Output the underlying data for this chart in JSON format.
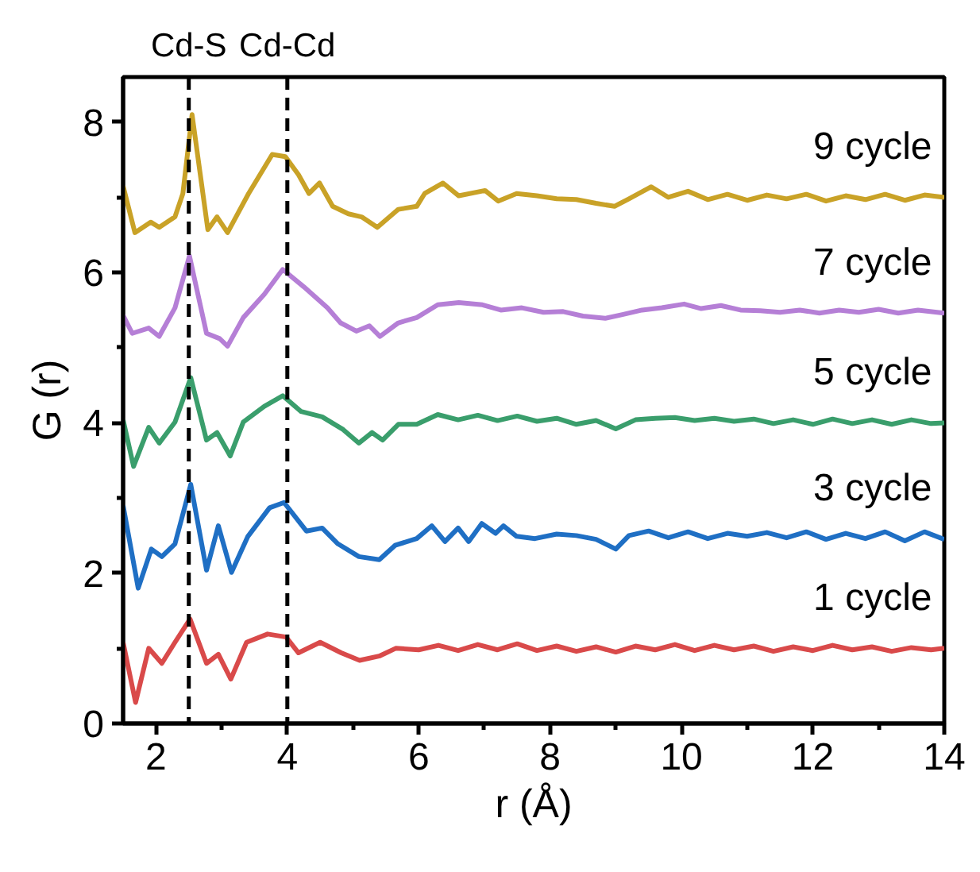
{
  "chart_data": {
    "type": "line",
    "xlabel": "r (Å)",
    "ylabel": "G (r)",
    "xlim": [
      1.5,
      14
    ],
    "xticks": [
      2,
      4,
      6,
      8,
      10,
      12,
      14
    ],
    "ylim": [
      0,
      8.6
    ],
    "yticks": [
      0,
      2,
      4,
      6,
      8
    ],
    "grid": false,
    "marker": "none",
    "line_style": "solid",
    "ref_lines": [
      {
        "axis": "x",
        "value": 2.5,
        "label": "Cd-S",
        "line_style": "dashed"
      },
      {
        "axis": "x",
        "value": 4.0,
        "label": "Cd-Cd",
        "line_style": "dashed"
      }
    ],
    "series": [
      {
        "name": "1 cycle",
        "color": "#d94a4a",
        "x": [
          1.5,
          1.69,
          1.89,
          2.09,
          2.29,
          2.52,
          2.77,
          2.95,
          3.14,
          3.38,
          3.7,
          3.98,
          4.17,
          4.5,
          4.82,
          5.1,
          5.41,
          5.65,
          6.0,
          6.3,
          6.6,
          6.9,
          7.2,
          7.5,
          7.8,
          8.1,
          8.4,
          8.7,
          9.0,
          9.3,
          9.6,
          9.9,
          10.2,
          10.5,
          10.8,
          11.1,
          11.4,
          11.7,
          12.0,
          12.3,
          12.6,
          12.9,
          13.2,
          13.5,
          13.8,
          14.0
        ],
        "values": [
          1.08,
          0.28,
          1.0,
          0.8,
          1.08,
          1.39,
          0.8,
          0.92,
          0.59,
          1.08,
          1.19,
          1.15,
          0.94,
          1.08,
          0.94,
          0.84,
          0.9,
          1.0,
          0.98,
          1.04,
          0.97,
          1.05,
          0.98,
          1.06,
          0.97,
          1.03,
          0.96,
          1.02,
          0.95,
          1.03,
          0.98,
          1.05,
          0.97,
          1.04,
          0.98,
          1.03,
          0.96,
          1.02,
          0.97,
          1.04,
          0.98,
          1.02,
          0.96,
          1.01,
          0.98,
          1.0
        ]
      },
      {
        "name": "3 cycle",
        "color": "#1f6fc4",
        "x": [
          1.5,
          1.73,
          1.93,
          2.09,
          2.29,
          2.53,
          2.77,
          2.95,
          3.15,
          3.4,
          3.73,
          3.95,
          4.29,
          4.53,
          4.77,
          5.09,
          5.4,
          5.64,
          5.97,
          6.2,
          6.4,
          6.6,
          6.76,
          6.96,
          7.17,
          7.29,
          7.49,
          7.77,
          8.1,
          8.4,
          8.7,
          9.0,
          9.2,
          9.5,
          9.8,
          10.1,
          10.4,
          10.7,
          11.0,
          11.3,
          11.6,
          11.9,
          12.2,
          12.5,
          12.8,
          13.1,
          13.4,
          13.7,
          14.0
        ],
        "values": [
          2.9,
          1.8,
          2.32,
          2.22,
          2.39,
          3.18,
          2.04,
          2.63,
          2.01,
          2.49,
          2.87,
          2.94,
          2.56,
          2.6,
          2.39,
          2.22,
          2.18,
          2.37,
          2.46,
          2.63,
          2.42,
          2.6,
          2.42,
          2.66,
          2.53,
          2.63,
          2.49,
          2.46,
          2.52,
          2.5,
          2.45,
          2.32,
          2.5,
          2.56,
          2.47,
          2.55,
          2.46,
          2.53,
          2.49,
          2.54,
          2.47,
          2.55,
          2.45,
          2.53,
          2.46,
          2.55,
          2.43,
          2.55,
          2.45
        ]
      },
      {
        "name": "5 cycle",
        "color": "#3a9e6c",
        "x": [
          1.5,
          1.66,
          1.89,
          2.05,
          2.29,
          2.53,
          2.77,
          2.93,
          3.13,
          3.33,
          3.65,
          3.93,
          4.21,
          4.53,
          4.85,
          5.09,
          5.29,
          5.45,
          5.69,
          5.97,
          6.29,
          6.6,
          6.9,
          7.2,
          7.5,
          7.8,
          8.1,
          8.4,
          8.7,
          9.0,
          9.3,
          9.6,
          9.9,
          10.2,
          10.5,
          10.8,
          11.1,
          11.4,
          11.7,
          12.0,
          12.3,
          12.6,
          12.9,
          13.2,
          13.5,
          13.8,
          14.0
        ],
        "values": [
          4.04,
          3.42,
          3.94,
          3.73,
          4.01,
          4.6,
          3.77,
          3.87,
          3.56,
          4.01,
          4.22,
          4.36,
          4.15,
          4.08,
          3.91,
          3.73,
          3.87,
          3.77,
          3.98,
          3.98,
          4.11,
          4.04,
          4.1,
          4.03,
          4.09,
          4.02,
          4.06,
          3.98,
          4.03,
          3.92,
          4.04,
          4.06,
          4.07,
          4.03,
          4.06,
          4.02,
          4.05,
          3.99,
          4.04,
          3.98,
          4.05,
          3.99,
          4.04,
          3.98,
          4.04,
          3.99,
          4.0
        ]
      },
      {
        "name": "7 cycle",
        "color": "#b57fd6",
        "x": [
          1.5,
          1.64,
          1.89,
          2.05,
          2.29,
          2.51,
          2.77,
          2.97,
          3.09,
          3.33,
          3.65,
          3.93,
          4.25,
          4.61,
          4.81,
          5.05,
          5.25,
          5.41,
          5.69,
          5.97,
          6.29,
          6.61,
          6.97,
          7.25,
          7.57,
          7.9,
          8.2,
          8.5,
          8.84,
          9.1,
          9.4,
          9.7,
          10.04,
          10.3,
          10.6,
          10.9,
          11.2,
          11.5,
          11.8,
          12.1,
          12.4,
          12.7,
          13.0,
          13.3,
          13.6,
          14.0
        ],
        "values": [
          5.43,
          5.19,
          5.26,
          5.15,
          5.53,
          6.22,
          5.19,
          5.12,
          5.02,
          5.4,
          5.71,
          6.04,
          5.81,
          5.53,
          5.33,
          5.22,
          5.29,
          5.15,
          5.33,
          5.4,
          5.57,
          5.6,
          5.57,
          5.5,
          5.53,
          5.47,
          5.48,
          5.42,
          5.39,
          5.44,
          5.5,
          5.53,
          5.58,
          5.52,
          5.56,
          5.5,
          5.49,
          5.47,
          5.5,
          5.46,
          5.5,
          5.47,
          5.51,
          5.46,
          5.5,
          5.46
        ]
      },
      {
        "name": "9 cycle",
        "color": "#c9a227",
        "x": [
          1.5,
          1.68,
          1.92,
          2.05,
          2.29,
          2.41,
          2.55,
          2.79,
          2.93,
          3.09,
          3.41,
          3.77,
          3.97,
          4.17,
          4.33,
          4.49,
          4.69,
          4.93,
          5.13,
          5.37,
          5.69,
          5.97,
          6.09,
          6.37,
          6.61,
          7.01,
          7.21,
          7.49,
          7.8,
          8.1,
          8.4,
          8.7,
          8.98,
          9.2,
          9.54,
          9.8,
          10.1,
          10.4,
          10.7,
          11.0,
          11.3,
          11.6,
          11.9,
          12.2,
          12.5,
          12.8,
          13.1,
          13.4,
          13.7,
          14.0
        ],
        "values": [
          7.15,
          6.53,
          6.67,
          6.6,
          6.74,
          7.05,
          8.1,
          6.57,
          6.74,
          6.53,
          7.05,
          7.57,
          7.54,
          7.3,
          7.05,
          7.19,
          6.88,
          6.78,
          6.74,
          6.6,
          6.84,
          6.88,
          7.05,
          7.19,
          7.02,
          7.09,
          6.95,
          7.05,
          7.02,
          6.98,
          6.97,
          6.92,
          6.88,
          6.98,
          7.14,
          7.0,
          7.08,
          6.97,
          7.04,
          6.96,
          7.03,
          6.98,
          7.04,
          6.95,
          7.02,
          6.97,
          7.04,
          6.96,
          7.03,
          7.0
        ]
      }
    ]
  }
}
